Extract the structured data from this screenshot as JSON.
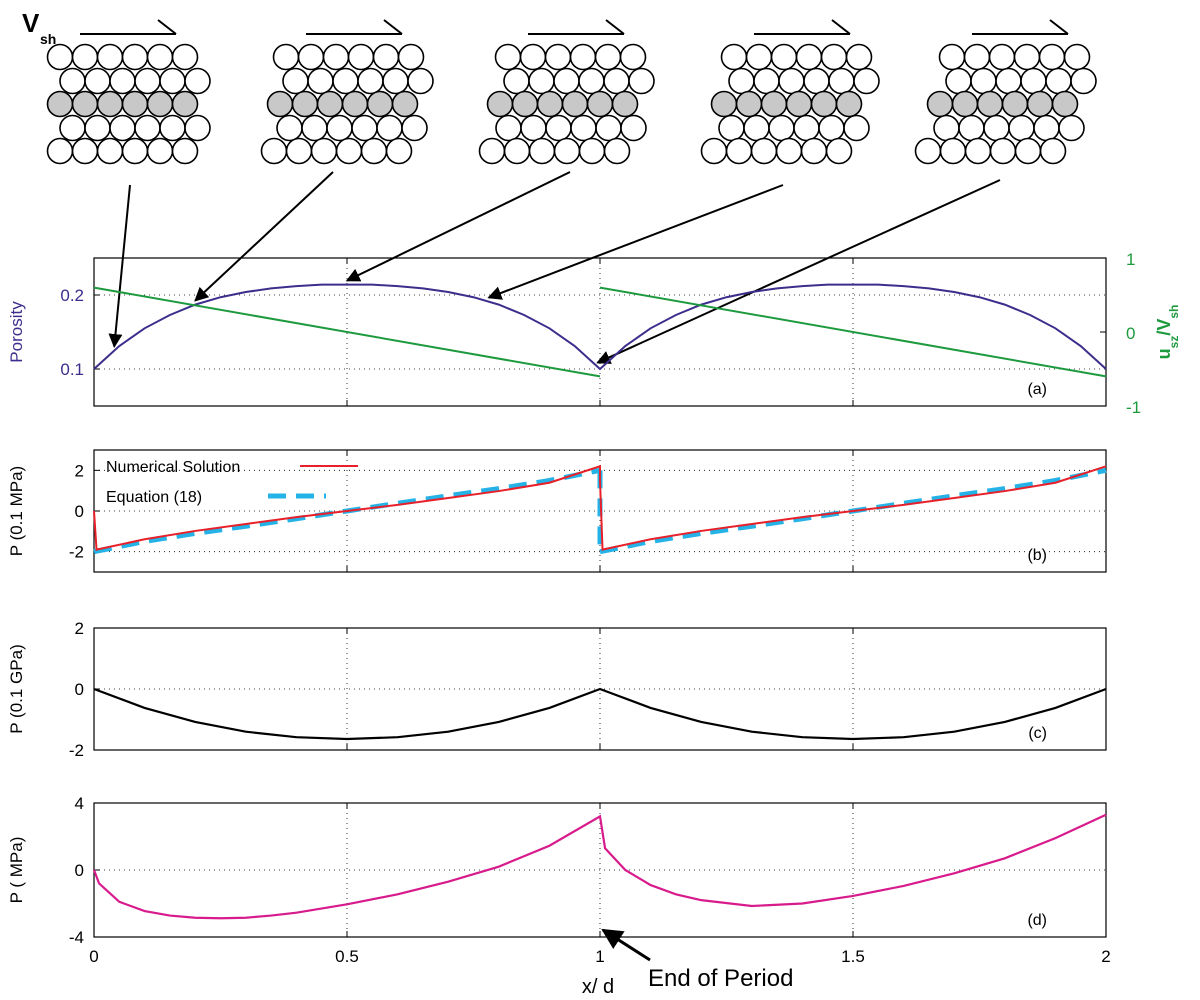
{
  "figure": {
    "vsh_label": "V",
    "vsh_sub": "sh",
    "end_of_period_label": "End of Period",
    "xlabel": "x/ d",
    "x_ticks": [
      "0",
      "0.5",
      "1",
      "1.5",
      "2"
    ],
    "colors": {
      "porosity": "#3b2e8c",
      "velocity": "#1e9a3e",
      "numerical": "#e8202a",
      "equation": "#25b2e6",
      "panel_c": "#000000",
      "panel_d": "#d81b8c",
      "grain_fill": "#c8c8c8"
    }
  },
  "chart_data": [
    {
      "type": "line",
      "panel": "(a)",
      "x": [
        0,
        0.05,
        0.1,
        0.15,
        0.2,
        0.25,
        0.3,
        0.35,
        0.4,
        0.45,
        0.5,
        0.55,
        0.6,
        0.65,
        0.7,
        0.75,
        0.8,
        0.85,
        0.9,
        0.95,
        1.0,
        1.05,
        1.1,
        1.15,
        1.2,
        1.25,
        1.3,
        1.35,
        1.4,
        1.45,
        1.5,
        1.55,
        1.6,
        1.65,
        1.7,
        1.75,
        1.8,
        1.85,
        1.9,
        1.95,
        2.0
      ],
      "series": [
        {
          "name": "",
          "axis": "left",
          "values": [
            0.1,
            0.131,
            0.155,
            0.173,
            0.187,
            0.197,
            0.204,
            0.209,
            0.212,
            0.214,
            0.214,
            0.214,
            0.212,
            0.209,
            0.204,
            0.197,
            0.187,
            0.173,
            0.155,
            0.131,
            0.1,
            0.131,
            0.155,
            0.173,
            0.187,
            0.197,
            0.204,
            0.209,
            0.212,
            0.214,
            0.214,
            0.214,
            0.212,
            0.209,
            0.204,
            0.197,
            0.187,
            0.173,
            0.155,
            0.131,
            0.1
          ]
        },
        {
          "name": "",
          "axis": "right",
          "segments": [
            {
              "x": [
                0,
                1
              ],
              "values": [
                0.6,
                -0.6
              ]
            },
            {
              "x": [
                1,
                2
              ],
              "values": [
                0.6,
                -0.6
              ]
            }
          ]
        }
      ],
      "ylabel": "Porosity",
      "ylim": [
        0.05,
        0.25
      ],
      "y_ticks": [
        "0.1",
        "0.2"
      ],
      "y2label": "u",
      "y2label_sub1": "sz",
      "y2label_mid": "/V",
      "y2label_sub2": "sh",
      "y2lim": [
        -1,
        1
      ],
      "y2_ticks": [
        "-1",
        "0",
        "1"
      ],
      "xlim": [
        0,
        2
      ],
      "grid": true
    },
    {
      "type": "line",
      "panel": "(b)",
      "x": [
        0,
        0.1,
        0.2,
        0.3,
        0.4,
        0.5,
        0.6,
        0.7,
        0.8,
        0.9,
        1.0,
        1.1,
        1.2,
        1.3,
        1.4,
        1.5,
        1.6,
        1.7,
        1.8,
        1.9,
        2.0
      ],
      "series": [
        {
          "name": "Numerical Solution",
          "style": "solid",
          "values": [
            -1.9,
            -1.39,
            -0.98,
            -0.64,
            -0.3,
            0.0,
            0.3,
            0.64,
            0.98,
            1.39,
            2.2,
            -1.39,
            -0.98,
            -0.64,
            -0.3,
            0.0,
            0.3,
            0.64,
            0.98,
            1.39,
            2.2
          ],
          "jump_points": [
            [
              0,
              0.0
            ],
            [
              1.0,
              2.2
            ],
            [
              1.0,
              1.5
            ],
            [
              1.005,
              -1.9
            ]
          ]
        },
        {
          "name": "Equation (18)",
          "style": "dashed",
          "values": [
            -2.0,
            -1.5,
            -1.1,
            -0.75,
            -0.38,
            0.0,
            0.38,
            0.75,
            1.1,
            1.5,
            2.0,
            -1.5,
            -1.1,
            -0.75,
            -0.38,
            0.0,
            0.38,
            0.75,
            1.1,
            1.5,
            2.0
          ]
        }
      ],
      "ylabel": "P (0.1 MPa)",
      "ylim": [
        -3,
        3
      ],
      "y_ticks": [
        "-2",
        "0",
        "2"
      ],
      "xlim": [
        0,
        2
      ],
      "grid": true,
      "legend": "top-left"
    },
    {
      "type": "line",
      "panel": "(c)",
      "x": [
        0,
        0.1,
        0.2,
        0.3,
        0.4,
        0.5,
        0.6,
        0.7,
        0.8,
        0.9,
        1.0,
        1.1,
        1.2,
        1.3,
        1.4,
        1.5,
        1.6,
        1.7,
        1.8,
        1.9,
        2.0
      ],
      "series": [
        {
          "name": "",
          "values": [
            0,
            -0.62,
            -1.08,
            -1.4,
            -1.58,
            -1.64,
            -1.58,
            -1.4,
            -1.08,
            -0.62,
            0,
            -0.62,
            -1.08,
            -1.4,
            -1.58,
            -1.64,
            -1.58,
            -1.4,
            -1.08,
            -0.62,
            0
          ]
        }
      ],
      "ylabel": "P (0.1 GPa)",
      "ylim": [
        -2,
        2
      ],
      "y_ticks": [
        "-2",
        "0",
        "2"
      ],
      "xlim": [
        0,
        2
      ],
      "grid": true
    },
    {
      "type": "line",
      "panel": "(d)",
      "x": [
        0,
        0.01,
        0.05,
        0.1,
        0.15,
        0.2,
        0.25,
        0.3,
        0.35,
        0.4,
        0.5,
        0.6,
        0.7,
        0.8,
        0.9,
        1.0,
        1.01,
        1.05,
        1.1,
        1.15,
        1.2,
        1.3,
        1.4,
        1.5,
        1.6,
        1.7,
        1.8,
        1.9,
        2.0
      ],
      "series": [
        {
          "name": "",
          "values": [
            0,
            -0.8,
            -1.9,
            -2.45,
            -2.72,
            -2.85,
            -2.88,
            -2.85,
            -2.72,
            -2.55,
            -2.05,
            -1.45,
            -0.7,
            0.2,
            1.45,
            3.2,
            1.3,
            0.0,
            -0.9,
            -1.45,
            -1.8,
            -2.15,
            -2.0,
            -1.55,
            -0.95,
            -0.2,
            0.7,
            1.9,
            3.3
          ]
        }
      ],
      "ylabel": "P ( MPa)",
      "ylim": [
        -4,
        4
      ],
      "y_ticks": [
        "-4",
        "0",
        "4"
      ],
      "xlim": [
        0,
        2
      ],
      "grid": true
    }
  ]
}
